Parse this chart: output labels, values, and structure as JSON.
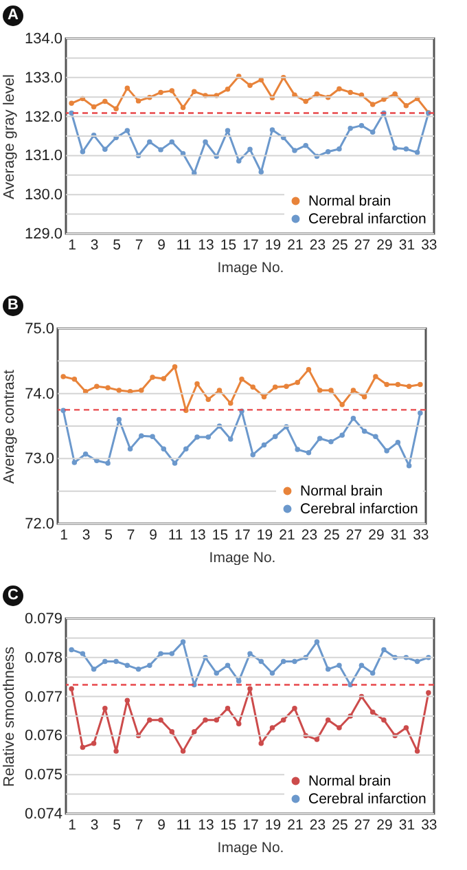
{
  "chart_data": [
    {
      "type": "line",
      "title": "A",
      "xlabel": "Image No.",
      "ylabel": "Average gray level",
      "x": [
        1,
        2,
        3,
        4,
        5,
        6,
        7,
        8,
        9,
        10,
        11,
        12,
        13,
        14,
        15,
        16,
        17,
        18,
        19,
        20,
        21,
        22,
        23,
        24,
        25,
        26,
        27,
        28,
        29,
        30,
        31,
        32,
        33
      ],
      "series": [
        {
          "name": "Normal brain",
          "color": "#e8833a",
          "values": [
            132.34,
            132.46,
            132.25,
            132.39,
            132.2,
            132.73,
            132.4,
            132.49,
            132.62,
            132.66,
            132.23,
            132.64,
            132.54,
            132.54,
            132.7,
            133.03,
            132.8,
            132.94,
            132.48,
            133.0,
            132.55,
            132.39,
            132.58,
            132.49,
            132.71,
            132.62,
            132.55,
            132.31,
            132.44,
            132.58,
            132.28,
            132.46,
            132.1
          ]
        },
        {
          "name": "Cerebral infarction",
          "color": "#6b98cc",
          "values": [
            132.09,
            131.1,
            131.52,
            131.16,
            131.46,
            131.64,
            131.0,
            131.35,
            131.15,
            131.35,
            131.05,
            130.55,
            131.35,
            130.98,
            131.64,
            130.86,
            131.16,
            130.58,
            131.66,
            131.46,
            131.13,
            131.26,
            130.98,
            131.1,
            131.17,
            131.7,
            131.77,
            131.6,
            132.09,
            131.19,
            131.17,
            131.08,
            132.09
          ]
        }
      ],
      "xlim": [
        0.5,
        33.5
      ],
      "xticks": [
        1,
        3,
        5,
        7,
        9,
        11,
        13,
        15,
        17,
        19,
        21,
        23,
        25,
        27,
        29,
        31,
        33
      ],
      "ylim": [
        129,
        134
      ],
      "yticks": [
        {
          "value": 129,
          "label": "129.0"
        },
        {
          "value": 129.5,
          "label": null
        },
        {
          "value": 130,
          "label": "130.0"
        },
        {
          "value": 130.5,
          "label": null
        },
        {
          "value": 131,
          "label": "131.0"
        },
        {
          "value": 131.5,
          "label": null
        },
        {
          "value": 132,
          "label": "132.0"
        },
        {
          "value": 132.5,
          "label": null
        },
        {
          "value": 133,
          "label": "133.0"
        },
        {
          "value": 133.5,
          "label": null
        },
        {
          "value": 134,
          "label": "134.0"
        }
      ],
      "ref_lines": [
        {
          "axis": "y",
          "value": 132.09,
          "color": "#e8474a",
          "line_style": "dashed"
        }
      ],
      "grid": "y",
      "legend": "bottom right",
      "marker": "circle",
      "line_style": "solid"
    },
    {
      "type": "line",
      "title": "B",
      "xlabel": "Image No.",
      "ylabel": "Average contrast",
      "x": [
        1,
        2,
        3,
        4,
        5,
        6,
        7,
        8,
        9,
        10,
        11,
        12,
        13,
        14,
        15,
        16,
        17,
        18,
        19,
        20,
        21,
        22,
        23,
        24,
        25,
        26,
        27,
        28,
        29,
        30,
        31,
        32,
        33
      ],
      "series": [
        {
          "name": "Normal brain",
          "color": "#e8833a",
          "values": [
            74.26,
            74.22,
            74.03,
            74.11,
            74.09,
            74.05,
            74.03,
            74.05,
            74.25,
            74.23,
            74.41,
            73.74,
            74.15,
            73.91,
            74.05,
            73.85,
            74.22,
            74.1,
            73.95,
            74.1,
            74.11,
            74.17,
            74.37,
            74.05,
            74.05,
            73.83,
            74.05,
            73.95,
            74.26,
            74.14,
            74.14,
            74.11,
            74.14
          ]
        },
        {
          "name": "Cerebral infarction",
          "color": "#6b98cc",
          "values": [
            73.74,
            72.94,
            73.07,
            72.97,
            72.93,
            73.6,
            73.15,
            73.35,
            73.34,
            73.15,
            72.93,
            73.15,
            73.33,
            73.33,
            73.5,
            73.3,
            73.73,
            73.06,
            73.21,
            73.34,
            73.49,
            73.14,
            73.09,
            73.31,
            73.26,
            73.36,
            73.62,
            73.42,
            73.34,
            73.12,
            73.25,
            72.89,
            73.7
          ]
        }
      ],
      "xlim": [
        0.5,
        33.5
      ],
      "xticks": [
        1,
        3,
        5,
        7,
        9,
        11,
        13,
        15,
        17,
        19,
        21,
        23,
        25,
        27,
        29,
        31,
        33
      ],
      "ylim": [
        72,
        75
      ],
      "yticks": [
        {
          "value": 72,
          "label": "72.0"
        },
        {
          "value": 72.5,
          "label": null
        },
        {
          "value": 73,
          "label": "73.0"
        },
        {
          "value": 73.5,
          "label": null
        },
        {
          "value": 74,
          "label": "74.0"
        },
        {
          "value": 74.5,
          "label": null
        },
        {
          "value": 75,
          "label": "75.0"
        }
      ],
      "ref_lines": [
        {
          "axis": "y",
          "value": 73.75,
          "color": "#e8474a",
          "line_style": "dashed"
        }
      ],
      "grid": "y",
      "legend": "bottom right",
      "marker": "circle",
      "line_style": "solid"
    },
    {
      "type": "line",
      "title": "C",
      "xlabel": "Image No.",
      "ylabel": "Relative smoothness",
      "x": [
        1,
        2,
        3,
        4,
        5,
        6,
        7,
        8,
        9,
        10,
        11,
        12,
        13,
        14,
        15,
        16,
        17,
        18,
        19,
        20,
        21,
        22,
        23,
        24,
        25,
        26,
        27,
        28,
        29,
        30,
        31,
        32,
        33
      ],
      "series": [
        {
          "name": "Normal brain",
          "color": "#cc4b4b",
          "values": [
            0.0772,
            0.0757,
            0.0758,
            0.0767,
            0.0756,
            0.0769,
            0.076,
            0.0764,
            0.0764,
            0.0761,
            0.0756,
            0.0761,
            0.0764,
            0.0764,
            0.0767,
            0.0763,
            0.0772,
            0.0758,
            0.0762,
            0.0764,
            0.0767,
            0.076,
            0.0759,
            0.0764,
            0.0762,
            0.0765,
            0.077,
            0.0766,
            0.0764,
            0.076,
            0.0762,
            0.0756,
            0.0771
          ]
        },
        {
          "name": "Cerebral infarction",
          "color": "#6b98cc",
          "values": [
            0.0782,
            0.0781,
            0.0777,
            0.0779,
            0.0779,
            0.0778,
            0.0777,
            0.0778,
            0.0781,
            0.0781,
            0.0784,
            0.0773,
            0.078,
            0.0776,
            0.0778,
            0.0774,
            0.0781,
            0.0779,
            0.0776,
            0.0779,
            0.0779,
            0.078,
            0.0784,
            0.0777,
            0.0778,
            0.0773,
            0.0778,
            0.0776,
            0.0782,
            0.078,
            0.078,
            0.0779,
            0.078
          ]
        }
      ],
      "xlim": [
        0.5,
        33.5
      ],
      "xticks": [
        1,
        3,
        5,
        7,
        9,
        11,
        13,
        15,
        17,
        19,
        21,
        23,
        25,
        27,
        29,
        31,
        33
      ],
      "ylim": [
        0.074,
        0.079
      ],
      "yticks": [
        0.074,
        {
          "value": 0.0745,
          "label": null
        },
        0.075,
        {
          "value": 0.0755,
          "label": null
        },
        0.076,
        {
          "value": 0.0765,
          "label": null
        },
        0.077,
        {
          "value": 0.0775,
          "label": null
        },
        0.078,
        {
          "value": 0.0785,
          "label": null
        },
        0.079
      ],
      "ref_lines": [
        {
          "axis": "y",
          "value": 0.0773,
          "color": "#e8474a",
          "line_style": "dashed"
        }
      ],
      "grid": "y",
      "legend": "bottom right",
      "marker": "circle",
      "line_style": "solid"
    }
  ]
}
